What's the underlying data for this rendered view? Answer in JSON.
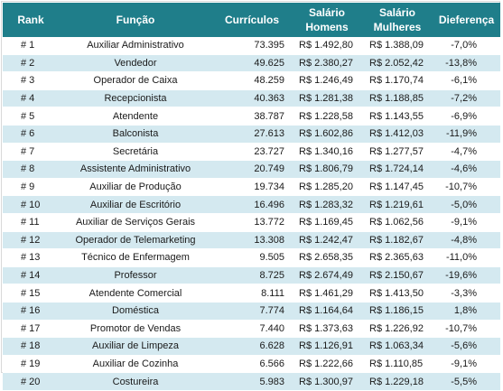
{
  "header": {
    "rank": "Rank",
    "funcao": "Função",
    "curriculos": "Currículos",
    "salario_homens": "Salário Homens",
    "salario_mulheres": "Salário Mulheres",
    "diferenca": "Dieferença"
  },
  "rows": [
    {
      "rank": "# 1",
      "funcao": "Auxiliar Administrativo",
      "curriculos": "73.395",
      "homens": "R$ 1.492,80",
      "mulheres": "R$ 1.388,09",
      "diferenca": "-7,0%"
    },
    {
      "rank": "# 2",
      "funcao": "Vendedor",
      "curriculos": "49.625",
      "homens": "R$ 2.380,27",
      "mulheres": "R$ 2.052,42",
      "diferenca": "-13,8%"
    },
    {
      "rank": "# 3",
      "funcao": "Operador de Caixa",
      "curriculos": "48.259",
      "homens": "R$ 1.246,49",
      "mulheres": "R$ 1.170,74",
      "diferenca": "-6,1%"
    },
    {
      "rank": "# 4",
      "funcao": "Recepcionista",
      "curriculos": "40.363",
      "homens": "R$ 1.281,38",
      "mulheres": "R$ 1.188,85",
      "diferenca": "-7,2%"
    },
    {
      "rank": "# 5",
      "funcao": "Atendente",
      "curriculos": "38.787",
      "homens": "R$ 1.228,58",
      "mulheres": "R$ 1.143,55",
      "diferenca": "-6,9%"
    },
    {
      "rank": "# 6",
      "funcao": "Balconista",
      "curriculos": "27.613",
      "homens": "R$ 1.602,86",
      "mulheres": "R$ 1.412,03",
      "diferenca": "-11,9%"
    },
    {
      "rank": "# 7",
      "funcao": "Secretária",
      "curriculos": "23.727",
      "homens": "R$ 1.340,16",
      "mulheres": "R$ 1.277,57",
      "diferenca": "-4,7%"
    },
    {
      "rank": "# 8",
      "funcao": "Assistente Administrativo",
      "curriculos": "20.749",
      "homens": "R$ 1.806,79",
      "mulheres": "R$ 1.724,14",
      "diferenca": "-4,6%"
    },
    {
      "rank": "# 9",
      "funcao": "Auxiliar de Produção",
      "curriculos": "19.734",
      "homens": "R$ 1.285,20",
      "mulheres": "R$ 1.147,45",
      "diferenca": "-10,7%"
    },
    {
      "rank": "# 10",
      "funcao": "Auxiliar de Escritório",
      "curriculos": "16.496",
      "homens": "R$ 1.283,32",
      "mulheres": "R$ 1.219,61",
      "diferenca": "-5,0%"
    },
    {
      "rank": "# 11",
      "funcao": "Auxiliar de Serviços Gerais",
      "curriculos": "13.772",
      "homens": "R$ 1.169,45",
      "mulheres": "R$ 1.062,56",
      "diferenca": "-9,1%"
    },
    {
      "rank": "# 12",
      "funcao": "Operador de Telemarketing",
      "curriculos": "13.308",
      "homens": "R$ 1.242,47",
      "mulheres": "R$ 1.182,67",
      "diferenca": "-4,8%"
    },
    {
      "rank": "# 13",
      "funcao": "Técnico de Enfermagem",
      "curriculos": "9.505",
      "homens": "R$ 2.658,35",
      "mulheres": "R$ 2.365,63",
      "diferenca": "-11,0%"
    },
    {
      "rank": "# 14",
      "funcao": "Professor",
      "curriculos": "8.725",
      "homens": "R$ 2.674,49",
      "mulheres": "R$ 2.150,67",
      "diferenca": "-19,6%"
    },
    {
      "rank": "# 15",
      "funcao": "Atendente Comercial",
      "curriculos": "8.111",
      "homens": "R$ 1.461,29",
      "mulheres": "R$ 1.413,50",
      "diferenca": "-3,3%"
    },
    {
      "rank": "# 16",
      "funcao": "Doméstica",
      "curriculos": "7.774",
      "homens": "R$ 1.164,64",
      "mulheres": "R$ 1.186,15",
      "diferenca": "1,8%"
    },
    {
      "rank": "# 17",
      "funcao": "Promotor de Vendas",
      "curriculos": "7.440",
      "homens": "R$ 1.373,63",
      "mulheres": "R$ 1.226,92",
      "diferenca": "-10,7%"
    },
    {
      "rank": "# 18",
      "funcao": "Auxiliar de Limpeza",
      "curriculos": "6.628",
      "homens": "R$ 1.126,91",
      "mulheres": "R$ 1.063,34",
      "diferenca": "-5,6%"
    },
    {
      "rank": "# 19",
      "funcao": "Auxiliar de Cozinha",
      "curriculos": "6.566",
      "homens": "R$ 1.222,66",
      "mulheres": "R$ 1.110,85",
      "diferenca": "-9,1%"
    },
    {
      "rank": "# 20",
      "funcao": "Costureira",
      "curriculos": "5.983",
      "homens": "R$ 1.300,97",
      "mulheres": "R$ 1.229,18",
      "diferenca": "-5,5%"
    }
  ],
  "colors": {
    "header_bg": "#1f7e8a",
    "header_text": "#ffffff",
    "row_alt_bg": "#d4e9f0",
    "row_bg": "#ffffff"
  }
}
